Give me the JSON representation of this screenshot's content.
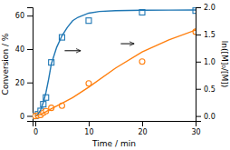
{
  "chart_data": {
    "type": "scatter",
    "xlabel": "Time / min",
    "ylabel": "Conversion / %",
    "y2label": "ln([M]₀/[M])",
    "xlim": [
      -0.5,
      30
    ],
    "ylim": [
      -3,
      65
    ],
    "y2lim": [
      -0.09,
      2.0
    ],
    "xticks": [
      0,
      10,
      20,
      30
    ],
    "yticks": [
      0,
      20,
      40,
      60
    ],
    "y2ticks": [
      {
        "value": 0.0,
        "label": "0.0"
      },
      0.5,
      {
        "value": 1.0,
        "label": "1.0"
      },
      1.5,
      {
        "value": 2.0,
        "label": "2.0"
      }
    ],
    "grid": false,
    "series": [
      {
        "type": "scatter",
        "marker": "square",
        "x": [
          0,
          0.5,
          1.0,
          1.5,
          2.0,
          3.0,
          5.0,
          10.0,
          20.0,
          30.0
        ],
        "values": [
          0,
          1,
          3,
          7,
          11,
          32,
          47,
          57,
          62,
          63
        ]
      },
      {
        "type": "scatter",
        "marker": "circle",
        "axis": "y2",
        "x": [
          0,
          0.5,
          1.0,
          1.5,
          2.0,
          3.0,
          5.0,
          10.0,
          20.0,
          30.0
        ],
        "values": [
          0.0,
          0.01,
          0.02,
          0.06,
          0.09,
          0.15,
          0.19,
          0.6,
          1.0,
          1.55
        ]
      },
      {
        "type": "line",
        "line_style": "solid",
        "x": [
          0,
          0.2,
          0.5,
          1.0,
          1.5,
          2.0,
          2.5,
          3.0,
          4.0,
          5.0,
          6.0,
          7.0,
          8.0,
          10.0,
          12.0,
          15.0,
          20.0,
          25.0,
          30.0
        ],
        "values": [
          0,
          0.3,
          1.0,
          3.5,
          8.0,
          14.0,
          22.0,
          31.0,
          41.0,
          48.0,
          53.0,
          57.0,
          59.0,
          61.5,
          62.5,
          63.0,
          63.2,
          63.3,
          63.4
        ]
      },
      {
        "type": "line",
        "line_style": "solid",
        "axis": "y2",
        "x": [
          0,
          0.5,
          1.0,
          1.5,
          2.0,
          3.0,
          4.0,
          5.0,
          7.0,
          10.0,
          15.0,
          20.0,
          25.0,
          30.0
        ],
        "values": [
          0.0,
          0.015,
          0.03,
          0.055,
          0.08,
          0.135,
          0.185,
          0.235,
          0.34,
          0.53,
          0.88,
          1.18,
          1.4,
          1.58
        ]
      }
    ],
    "annotations": [
      {
        "type": "arrow",
        "x_start": 5.5,
        "x_end": 8.5,
        "y": 39
      },
      {
        "type": "arrow",
        "axis": "y2",
        "x_start": 16.0,
        "x_end": 18.5,
        "y": 1.33
      }
    ]
  }
}
